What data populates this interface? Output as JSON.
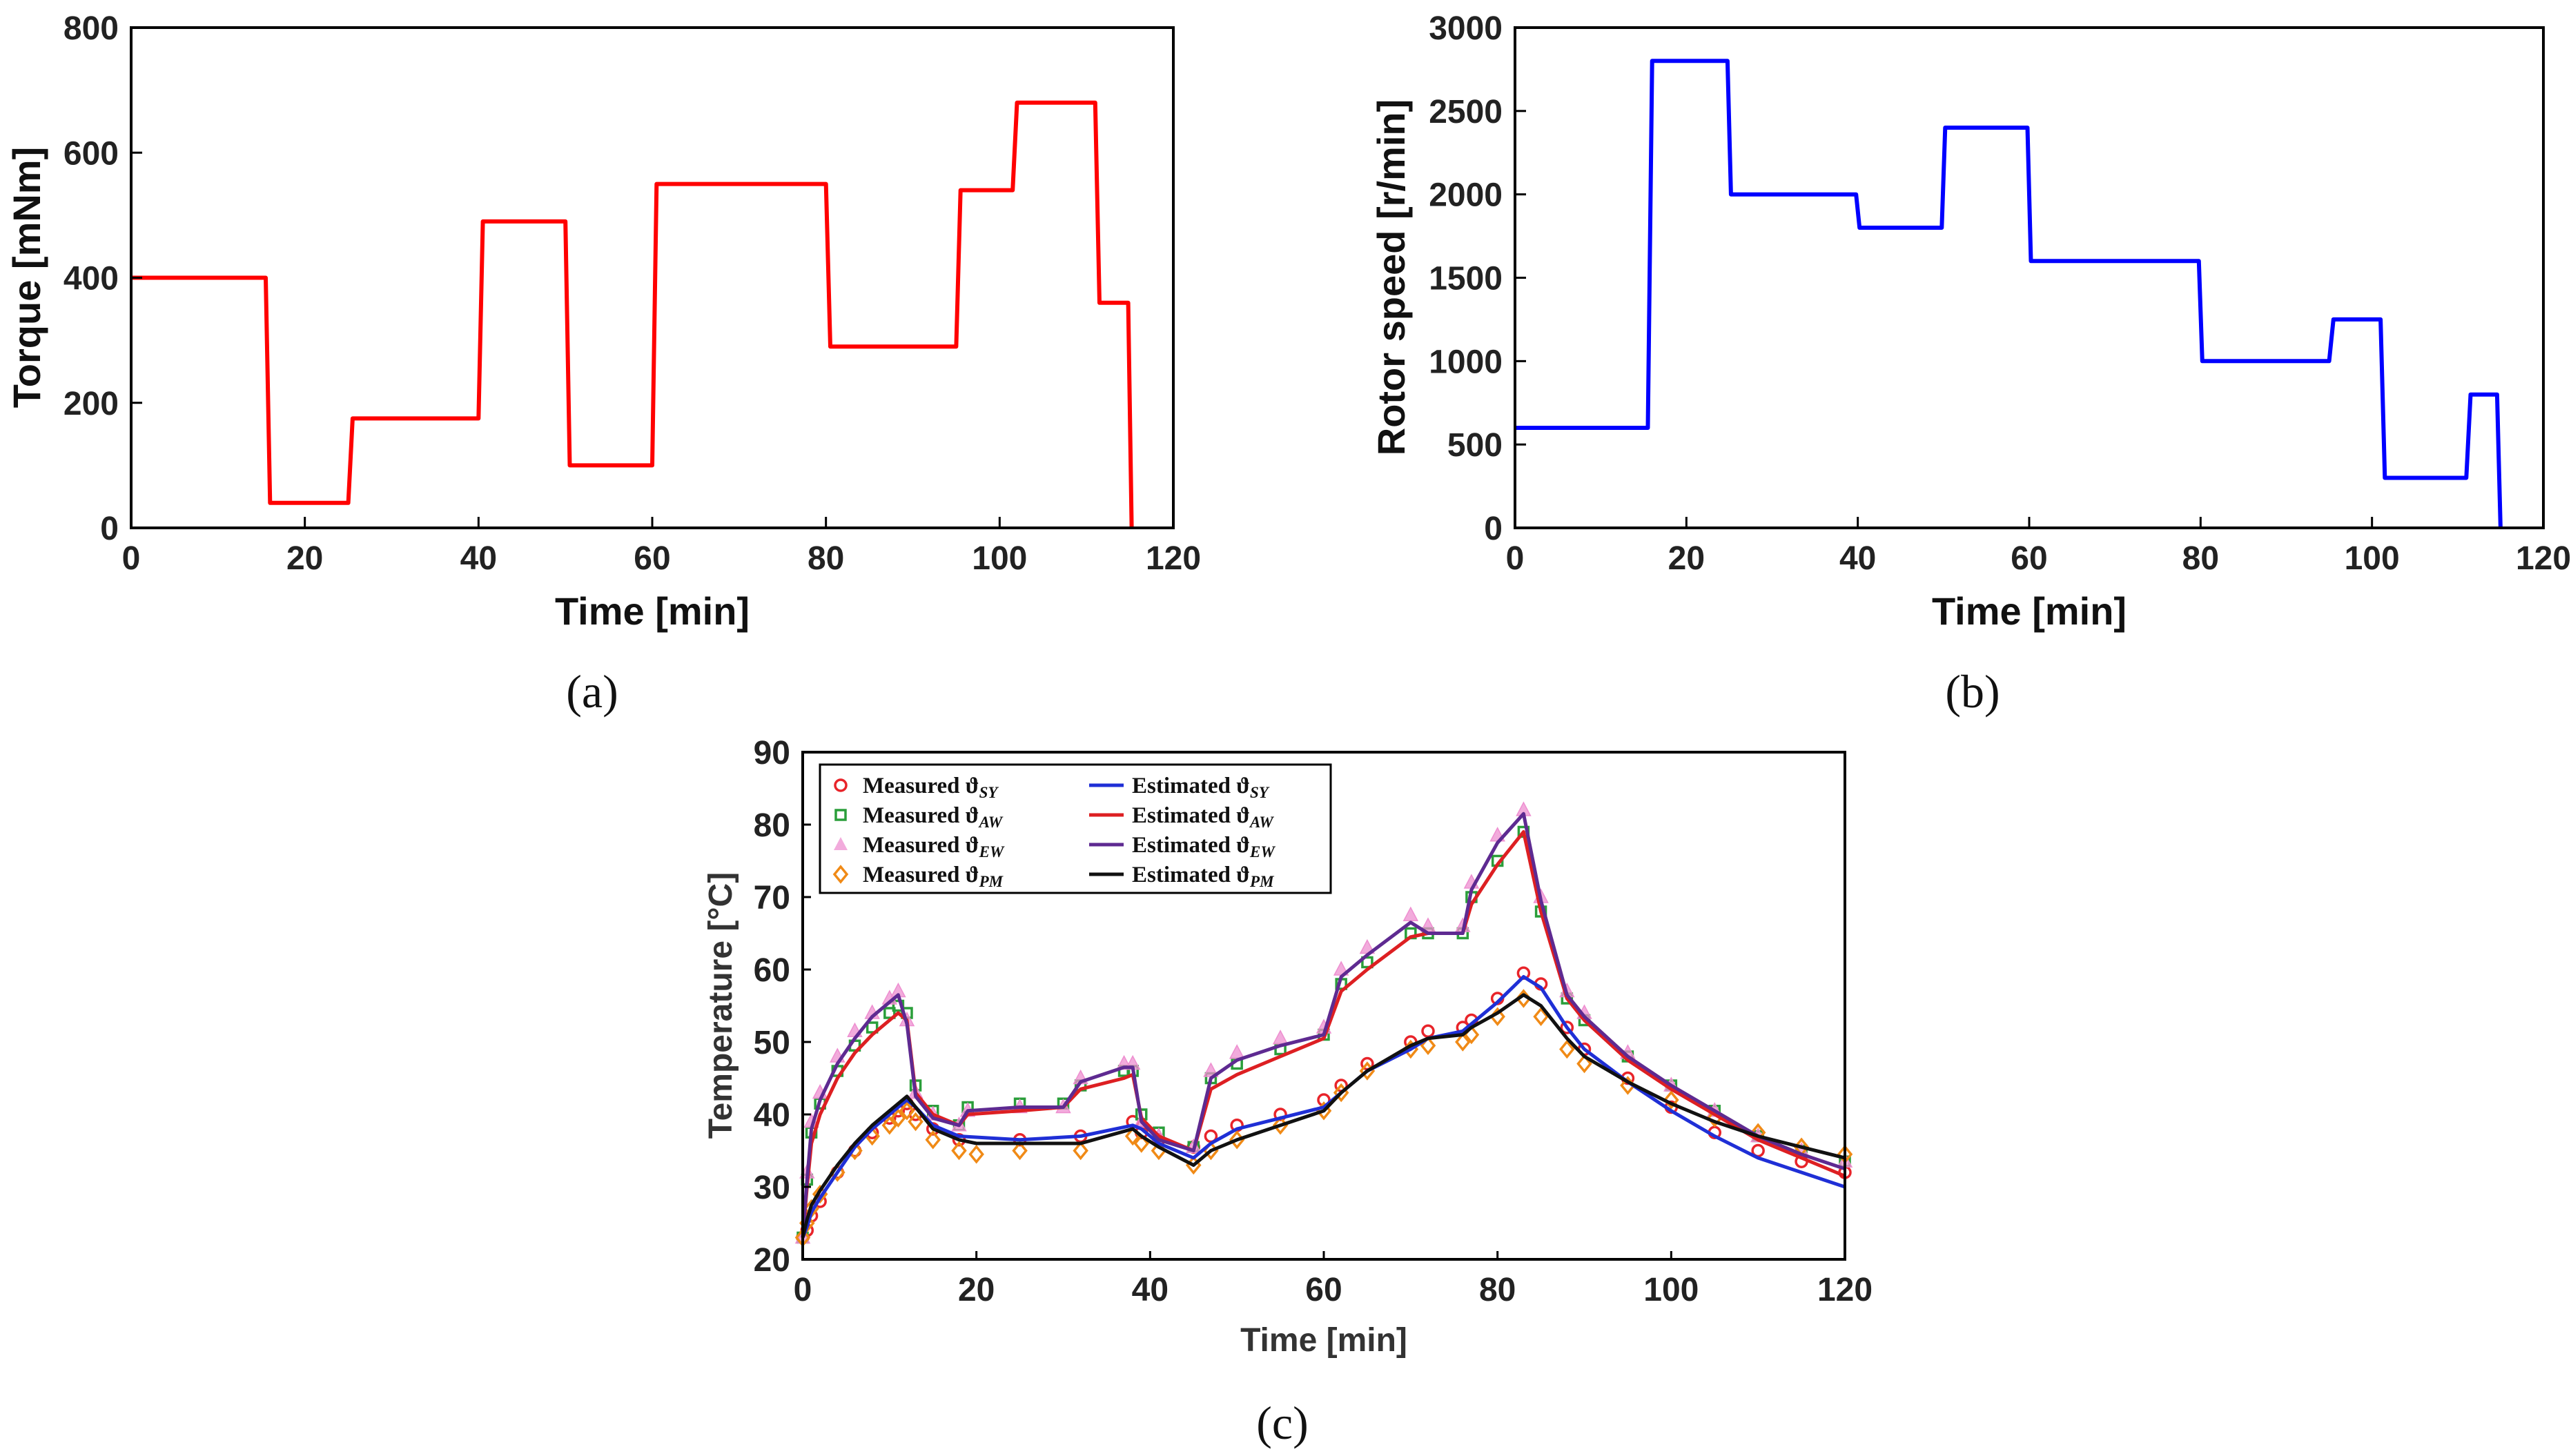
{
  "chart_data": [
    {
      "id": "a",
      "panel_label": "(a)",
      "type": "line",
      "xlabel": "Time [min]",
      "ylabel": "Torque [mNm]",
      "xlim": [
        0,
        120
      ],
      "ylim": [
        0,
        800
      ],
      "xticks": [
        0,
        20,
        40,
        60,
        80,
        100,
        120
      ],
      "yticks": [
        0,
        200,
        400,
        600,
        800
      ],
      "grid": false,
      "series": [
        {
          "name": "Torque",
          "color": "#ff0000",
          "x": [
            0,
            15.5,
            16,
            25,
            25.5,
            40,
            40.5,
            50,
            50.5,
            60,
            60.5,
            80,
            80.5,
            95,
            95.5,
            101.5,
            102,
            111,
            111.5,
            114.8,
            115.2
          ],
          "y": [
            400,
            400,
            40,
            40,
            175,
            175,
            490,
            490,
            100,
            100,
            550,
            550,
            290,
            290,
            540,
            540,
            680,
            680,
            360,
            360,
            0
          ]
        }
      ]
    },
    {
      "id": "b",
      "panel_label": "(b)",
      "type": "line",
      "xlabel": "Time [min]",
      "ylabel": "Rotor speed [r/min]",
      "xlim": [
        0,
        120
      ],
      "ylim": [
        0,
        3000
      ],
      "xticks": [
        0,
        20,
        40,
        60,
        80,
        100,
        120
      ],
      "yticks": [
        0,
        500,
        1000,
        1500,
        2000,
        2500,
        3000
      ],
      "grid": false,
      "series": [
        {
          "name": "Rotor speed",
          "color": "#0000ff",
          "x": [
            0,
            15.5,
            16,
            24.8,
            25.2,
            39.8,
            40.2,
            49.8,
            50.2,
            59.8,
            60.2,
            79.8,
            80.2,
            95,
            95.5,
            101,
            101.5,
            111,
            111.5,
            114.6,
            115
          ],
          "y": [
            600,
            600,
            2800,
            2800,
            2000,
            2000,
            1800,
            1800,
            2400,
            2400,
            1600,
            1600,
            1000,
            1000,
            1250,
            1250,
            300,
            300,
            800,
            800,
            0
          ]
        }
      ]
    },
    {
      "id": "c",
      "panel_label": "(c)",
      "type": "line",
      "xlabel": "Time [min]",
      "ylabel": "Temperature [°C]",
      "xlim": [
        0,
        120
      ],
      "ylim": [
        20,
        90
      ],
      "xticks": [
        0,
        20,
        40,
        60,
        80,
        100,
        120
      ],
      "yticks": [
        20,
        30,
        40,
        50,
        60,
        70,
        80,
        90
      ],
      "grid": false,
      "legend_position": "top-left",
      "legend": {
        "measured_prefix": "Measured ϑ",
        "estimated_prefix": "Estimated ϑ"
      },
      "series": [
        {
          "name": "Measured ϑSY",
          "subscript": "SY",
          "kind": "measured",
          "marker": "circle",
          "color": "#e8242a",
          "x": [
            0,
            0.5,
            1,
            2,
            4,
            6,
            8,
            10,
            11,
            12,
            13,
            15,
            18,
            25,
            32,
            38,
            39,
            41,
            45,
            47,
            50,
            55,
            60,
            62,
            65,
            70,
            72,
            76,
            77,
            80,
            83,
            85,
            88,
            90,
            95,
            100,
            105,
            110,
            115,
            120
          ],
          "y": [
            23,
            24,
            26,
            28,
            32,
            35,
            37.5,
            39.5,
            40.5,
            41.5,
            40,
            38,
            36.5,
            36.5,
            37,
            39,
            37.5,
            36.5,
            35.5,
            37,
            38.5,
            40,
            42,
            44,
            47,
            50,
            51.5,
            52,
            53,
            56,
            59.5,
            58,
            52,
            49,
            45,
            41,
            37.5,
            35,
            33.5,
            32
          ]
        },
        {
          "name": "Measured ϑAW",
          "subscript": "AW",
          "kind": "measured",
          "marker": "square",
          "color": "#2a9e3a",
          "x": [
            0,
            0.5,
            1,
            2,
            4,
            6,
            8,
            10,
            11,
            12,
            13,
            15,
            18,
            19,
            25,
            30,
            32,
            37,
            38,
            39,
            41,
            45,
            47,
            50,
            55,
            60,
            62,
            65,
            70,
            72,
            76,
            77,
            80,
            83,
            85,
            88,
            90,
            95,
            100,
            105,
            110,
            115,
            120
          ],
          "y": [
            23,
            31,
            37.5,
            41.5,
            46,
            49.5,
            52,
            54,
            55,
            54,
            44,
            40.5,
            38.5,
            41,
            41.5,
            41.5,
            44,
            46,
            46,
            40,
            37.5,
            35.5,
            45,
            47,
            49,
            51,
            58,
            61,
            65,
            65,
            65,
            70,
            75,
            79,
            68,
            56,
            53,
            48,
            44,
            40.5,
            37,
            35,
            33.5
          ]
        },
        {
          "name": "Measured ϑEW",
          "subscript": "EW",
          "kind": "measured",
          "marker": "triangle",
          "color": "#ee8fd0",
          "x": [
            0,
            0.5,
            1,
            2,
            4,
            6,
            8,
            10,
            11,
            12,
            13,
            15,
            18,
            19,
            25,
            30,
            32,
            37,
            38,
            39,
            41,
            45,
            47,
            50,
            55,
            60,
            62,
            65,
            70,
            72,
            76,
            77,
            80,
            83,
            85,
            88,
            90,
            95,
            100,
            105,
            110,
            115,
            120
          ],
          "y": [
            23,
            32,
            39,
            43,
            48,
            51.5,
            54,
            56,
            57,
            53,
            43,
            40,
            38.5,
            40.5,
            41,
            41,
            45,
            47,
            47,
            39,
            37,
            35.5,
            46,
            48.5,
            50.5,
            52,
            60,
            63,
            67.5,
            66,
            66,
            72,
            78.5,
            82,
            70,
            57,
            54,
            48.5,
            44,
            40.5,
            37,
            35,
            33.5
          ]
        },
        {
          "name": "Measured ϑPM",
          "subscript": "PM",
          "kind": "measured",
          "marker": "diamond",
          "color": "#f08a16",
          "x": [
            0,
            0.5,
            1,
            2,
            4,
            6,
            8,
            10,
            11,
            12,
            13,
            15,
            18,
            20,
            25,
            32,
            38,
            39,
            41,
            45,
            47,
            50,
            55,
            60,
            62,
            65,
            70,
            72,
            76,
            77,
            80,
            83,
            85,
            88,
            90,
            95,
            100,
            105,
            110,
            115,
            120
          ],
          "y": [
            23,
            25,
            27,
            29,
            32,
            35,
            37,
            38.5,
            39.5,
            40.5,
            39,
            36.5,
            35,
            34.5,
            35,
            35,
            37,
            36,
            35,
            33,
            35,
            36.5,
            38.5,
            40.5,
            43,
            46,
            49,
            49.5,
            50,
            51,
            53.5,
            56,
            53.5,
            49,
            47,
            44,
            42,
            39.5,
            37.5,
            35.5,
            34.5
          ]
        },
        {
          "name": "Estimated ϑSY",
          "subscript": "SY",
          "kind": "estimated",
          "color": "#1f2fd6",
          "x": [
            0,
            0.5,
            1,
            2,
            4,
            6,
            8,
            10,
            11,
            12,
            13,
            15,
            18,
            25,
            32,
            38,
            39,
            41,
            45,
            47,
            50,
            55,
            60,
            62,
            65,
            70,
            72,
            76,
            77,
            80,
            83,
            85,
            88,
            90,
            95,
            100,
            105,
            110,
            115,
            120
          ],
          "y": [
            23,
            24.5,
            26.5,
            28.5,
            32,
            35.5,
            38,
            40,
            41,
            42,
            41,
            38.5,
            37,
            36.5,
            37,
            38.5,
            38,
            36,
            34,
            36,
            38,
            39.5,
            41,
            43,
            46,
            49,
            50.5,
            51.5,
            52.5,
            55.5,
            59,
            57.5,
            52,
            49,
            44.5,
            40.5,
            37,
            34,
            32,
            30
          ]
        },
        {
          "name": "Estimated ϑAW",
          "subscript": "AW",
          "kind": "estimated",
          "color": "#dd1f22",
          "x": [
            0,
            0.5,
            1,
            2,
            4,
            6,
            8,
            10,
            11,
            12,
            13,
            15,
            18,
            19,
            25,
            30,
            32,
            37,
            38,
            39,
            41,
            45,
            47,
            50,
            55,
            60,
            62,
            65,
            70,
            72,
            76,
            77,
            80,
            83,
            85,
            88,
            90,
            95,
            100,
            105,
            110,
            115,
            120
          ],
          "y": [
            23,
            30,
            36,
            40,
            45,
            48.5,
            51,
            53,
            54,
            53,
            43,
            40,
            38.5,
            40,
            40.5,
            41,
            43.5,
            45,
            45.5,
            39.5,
            37,
            35,
            43.5,
            45.5,
            48,
            50.5,
            57,
            60,
            64.5,
            65,
            65,
            69,
            74.5,
            79,
            68,
            56,
            53,
            47.5,
            43.5,
            40,
            36.5,
            34,
            31.5
          ]
        },
        {
          "name": "Estimated ϑEW",
          "subscript": "EW",
          "kind": "estimated",
          "color": "#5e2a91",
          "x": [
            0,
            0.5,
            1,
            2,
            4,
            6,
            8,
            10,
            11,
            12,
            13,
            15,
            18,
            19,
            25,
            30,
            32,
            37,
            38,
            39,
            41,
            45,
            47,
            50,
            55,
            60,
            62,
            65,
            70,
            72,
            76,
            77,
            80,
            83,
            85,
            88,
            90,
            95,
            100,
            105,
            110,
            115,
            120
          ],
          "y": [
            23,
            31,
            38,
            42,
            47,
            50.5,
            53.5,
            55.5,
            56.5,
            52.5,
            42.5,
            39.5,
            38.5,
            40.5,
            41,
            41,
            44.5,
            46.5,
            46.5,
            39,
            36.5,
            35,
            45,
            47.5,
            49.5,
            51,
            59,
            62,
            66.5,
            65,
            65,
            71,
            77.5,
            81.5,
            69.5,
            56.5,
            53.5,
            48,
            44,
            40.5,
            37,
            34.5,
            32.5
          ]
        },
        {
          "name": "Estimated ϑPM",
          "subscript": "PM",
          "kind": "estimated",
          "color": "#111111",
          "x": [
            0,
            0.5,
            1,
            2,
            4,
            6,
            8,
            10,
            11,
            12,
            13,
            15,
            18,
            20,
            25,
            32,
            38,
            39,
            41,
            45,
            47,
            50,
            55,
            60,
            62,
            65,
            70,
            72,
            76,
            77,
            80,
            83,
            85,
            88,
            90,
            95,
            100,
            105,
            110,
            115,
            120
          ],
          "y": [
            23,
            25.5,
            27.5,
            29.5,
            33,
            36,
            38.5,
            40.5,
            41.5,
            42.5,
            41,
            38,
            36.5,
            36,
            36,
            36,
            38,
            37,
            35.5,
            33,
            35,
            36.5,
            38.5,
            40.5,
            43,
            46,
            49.5,
            50.5,
            51,
            52,
            54,
            56.5,
            55,
            50.5,
            48,
            44.5,
            41.5,
            39,
            37,
            35.5,
            34
          ]
        }
      ]
    }
  ]
}
